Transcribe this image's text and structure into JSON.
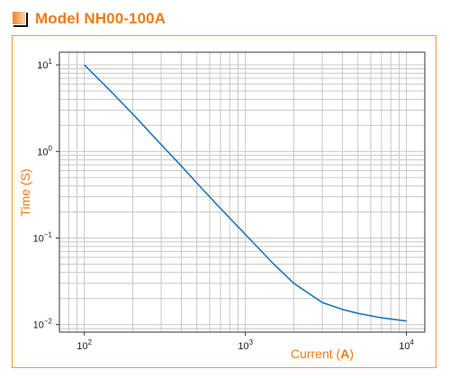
{
  "header": {
    "title": "Model NH00-100A",
    "icon": "orange-square-bullet-icon"
  },
  "colors": {
    "accent": "#f07b16",
    "frame": "#f39a3f",
    "line": "#1f77b4",
    "grid": "#c8c8c8"
  },
  "chart_data": {
    "type": "line",
    "title": "",
    "xlabel_prefix": "Current (",
    "xlabel_unit": "A",
    "xlabel_suffix": ")",
    "ylabel": "Time (S)",
    "xscale": "log",
    "yscale": "log",
    "xlim": [
      70,
      13000
    ],
    "ylim": [
      0.0082,
      14
    ],
    "grid": true,
    "x_ticks": [
      {
        "value": 100,
        "base": "10",
        "exp": "2"
      },
      {
        "value": 1000,
        "base": "10",
        "exp": "3"
      },
      {
        "value": 10000,
        "base": "10",
        "exp": "4"
      }
    ],
    "y_ticks": [
      {
        "value": 10,
        "base": "10",
        "exp": "1"
      },
      {
        "value": 1,
        "base": "10",
        "exp": "0"
      },
      {
        "value": 0.1,
        "base": "10",
        "exp": "−1"
      },
      {
        "value": 0.01,
        "base": "10",
        "exp": "−2"
      }
    ],
    "series": [
      {
        "x": [
          100,
          150,
          200,
          300,
          400,
          500,
          700,
          1000,
          1500,
          2000,
          3000,
          4000,
          5000,
          7000,
          10000
        ],
        "y": [
          10,
          4.7,
          2.7,
          1.2,
          0.68,
          0.43,
          0.22,
          0.11,
          0.05,
          0.03,
          0.018,
          0.015,
          0.0135,
          0.012,
          0.011
        ]
      }
    ]
  }
}
